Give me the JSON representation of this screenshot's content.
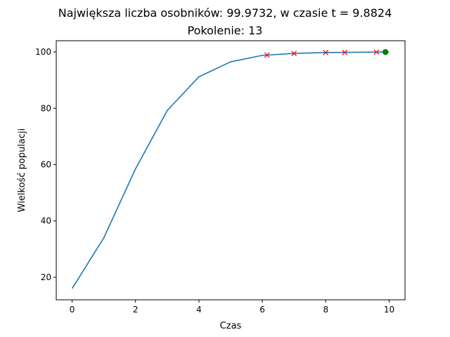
{
  "chart_data": {
    "type": "line",
    "title": "Największa liczba osobników: 99.9732, w czasie t = 9.8824",
    "subtitle": "Pokolenie: 13",
    "xlabel": "Czas",
    "ylabel": "Wielkość populacji",
    "xlim": [
      -0.5,
      10.5
    ],
    "ylim": [
      12,
      104
    ],
    "xticks": [
      0,
      2,
      4,
      6,
      8,
      10
    ],
    "yticks": [
      20,
      40,
      60,
      80,
      100
    ],
    "grid": false,
    "series": [
      {
        "style": "line",
        "color": "#1f77b4",
        "x": [
          0,
          1,
          2,
          3,
          4,
          5,
          6,
          7,
          8,
          9,
          10
        ],
        "y": [
          16,
          34,
          58.5,
          79.2,
          91.2,
          96.5,
          98.8,
          99.5,
          99.8,
          99.9,
          100
        ]
      },
      {
        "style": "markers",
        "marker": "x",
        "color": "#ff0000",
        "x": [
          6.15,
          7.0,
          8.0,
          8.6,
          9.6
        ],
        "y": [
          98.9,
          99.5,
          99.8,
          99.85,
          99.95
        ]
      },
      {
        "style": "markers",
        "marker": "circle",
        "color": "#008000",
        "x": [
          9.8824
        ],
        "y": [
          99.9732
        ]
      }
    ]
  }
}
